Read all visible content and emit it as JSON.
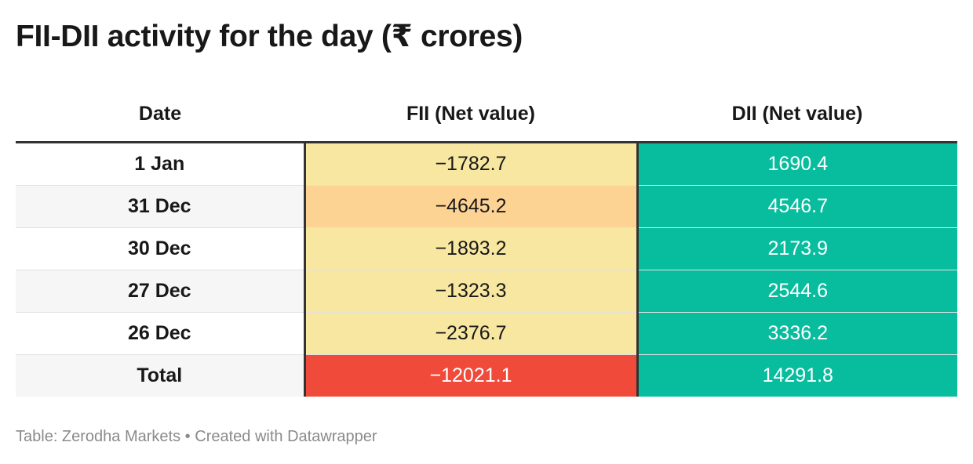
{
  "title": "FII-DII activity for the day (₹ crores)",
  "footer": {
    "source_label": "Table: Zerodha Markets",
    "separator": "•",
    "credit": "Created with Datawrapper"
  },
  "colors": {
    "fii_low": "#f8e7a0",
    "fii_mid": "#fdd394",
    "fii_high": "#f04b3a",
    "dii": "#08bd9e",
    "header_rule": "#333333"
  },
  "chart_data": {
    "type": "table",
    "title": "FII-DII activity for the day (₹ crores)",
    "columns": [
      "Date",
      "FII (Net value)",
      "DII (Net value)"
    ],
    "rows": [
      {
        "date": "1 Jan",
        "fii": "−1782.7",
        "dii": "1690.4",
        "fii_value": -1782.7,
        "dii_value": 1690.4,
        "fii_color": "#f8e7a0",
        "fii_text_color": "#181818"
      },
      {
        "date": "31 Dec",
        "fii": "−4645.2",
        "dii": "4546.7",
        "fii_value": -4645.2,
        "dii_value": 4546.7,
        "fii_color": "#fdd394",
        "fii_text_color": "#181818"
      },
      {
        "date": "30 Dec",
        "fii": "−1893.2",
        "dii": "2173.9",
        "fii_value": -1893.2,
        "dii_value": 2173.9,
        "fii_color": "#f8e7a0",
        "fii_text_color": "#181818"
      },
      {
        "date": "27 Dec",
        "fii": "−1323.3",
        "dii": "2544.6",
        "fii_value": -1323.3,
        "dii_value": 2544.6,
        "fii_color": "#f8e7a0",
        "fii_text_color": "#181818"
      },
      {
        "date": "26 Dec",
        "fii": "−2376.7",
        "dii": "3336.2",
        "fii_value": -2376.7,
        "dii_value": 3336.2,
        "fii_color": "#f8e7a0",
        "fii_text_color": "#181818"
      },
      {
        "date": "Total",
        "fii": "−12021.1",
        "dii": "14291.8",
        "fii_value": -12021.1,
        "dii_value": 14291.8,
        "fii_color": "#f04b3a",
        "fii_text_color": "#ffffff"
      }
    ]
  }
}
